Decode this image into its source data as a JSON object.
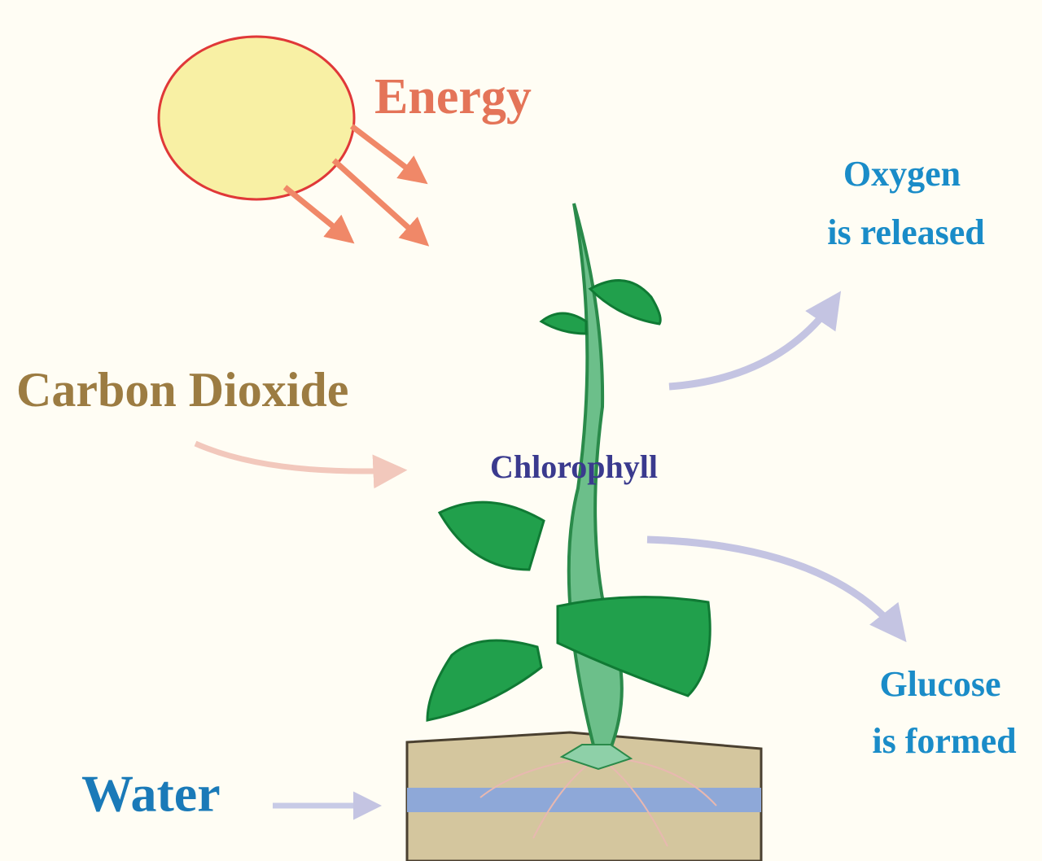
{
  "labels": {
    "energy": "Energy",
    "oxygen": {
      "line1": "Oxygen",
      "line2": "is released"
    },
    "carbon_dioxide": "Carbon Dioxide",
    "chlorophyll": "Chlorophyll",
    "glucose": {
      "line1": "Glucose",
      "line2": "is formed"
    },
    "water": "Water"
  }
}
